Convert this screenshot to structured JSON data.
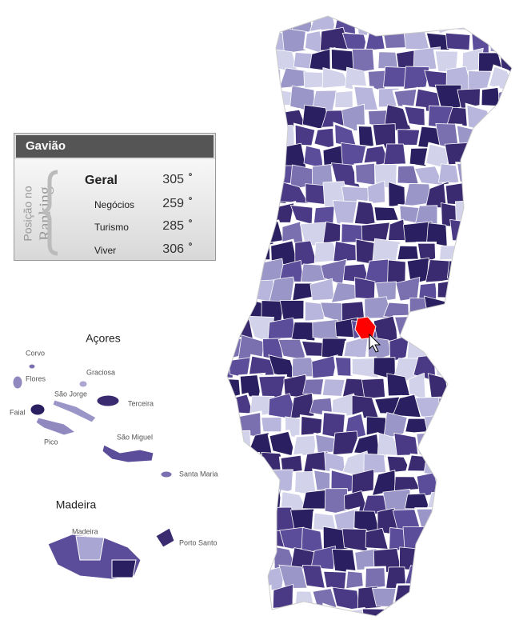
{
  "panel": {
    "municipality": "Gavião",
    "caption_line1": "Posição no",
    "caption_line2": "Ranking",
    "ordinal_mark": "º",
    "rankings": [
      {
        "label": "Geral",
        "rank": 305
      },
      {
        "label": "Negócios",
        "rank": 259
      },
      {
        "label": "Turismo",
        "rank": 285
      },
      {
        "label": "Viver",
        "rank": 306
      }
    ]
  },
  "map": {
    "azores_title": "Açores",
    "madeira_title": "Madeira",
    "islands": [
      "Corvo",
      "Flores",
      "Graciosa",
      "São Jorge",
      "Terceira",
      "Faial",
      "Pico",
      "São Miguel",
      "Santa Maria",
      "Madeira",
      "Porto Santo"
    ]
  }
}
